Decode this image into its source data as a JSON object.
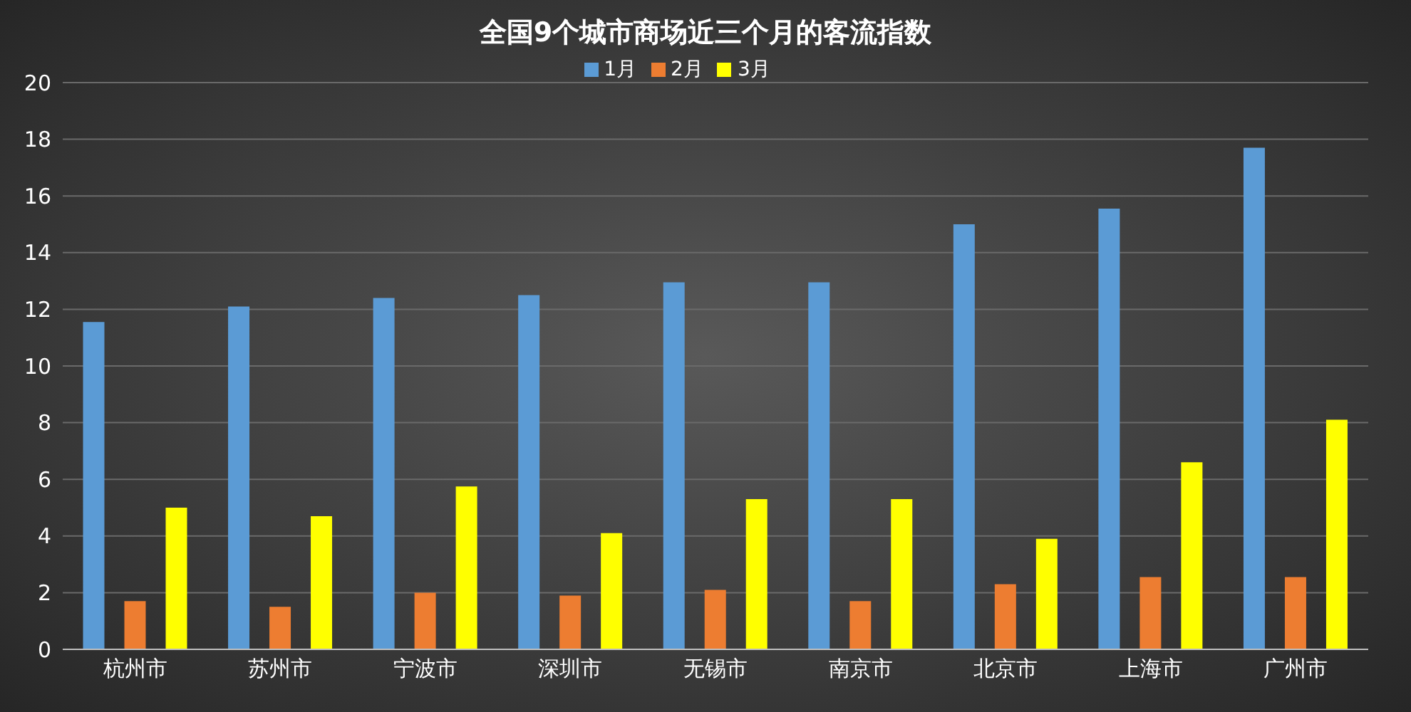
{
  "chart_data": {
    "type": "bar",
    "title": "全国9个城市商场近三个月的客流指数",
    "categories": [
      "杭州市",
      "苏州市",
      "宁波市",
      "深圳市",
      "无锡市",
      "南京市",
      "北京市",
      "上海市",
      "广州市"
    ],
    "series": [
      {
        "name": "1月",
        "color": "#5b9bd5",
        "values": [
          11.55,
          12.1,
          12.4,
          12.5,
          12.95,
          12.95,
          15.0,
          15.55,
          17.7
        ]
      },
      {
        "name": "2月",
        "color": "#ed7d31",
        "values": [
          1.7,
          1.5,
          2.0,
          1.9,
          2.1,
          1.7,
          2.3,
          2.55,
          2.55
        ]
      },
      {
        "name": "3月",
        "color": "#ffff00",
        "values": [
          5.0,
          4.7,
          5.75,
          4.1,
          5.3,
          5.3,
          3.9,
          6.6,
          8.1
        ]
      }
    ],
    "ylim": [
      0,
      20
    ],
    "yticks": [
      0,
      2,
      4,
      6,
      8,
      10,
      12,
      14,
      16,
      18,
      20
    ],
    "grid": "y",
    "legend": "top"
  }
}
